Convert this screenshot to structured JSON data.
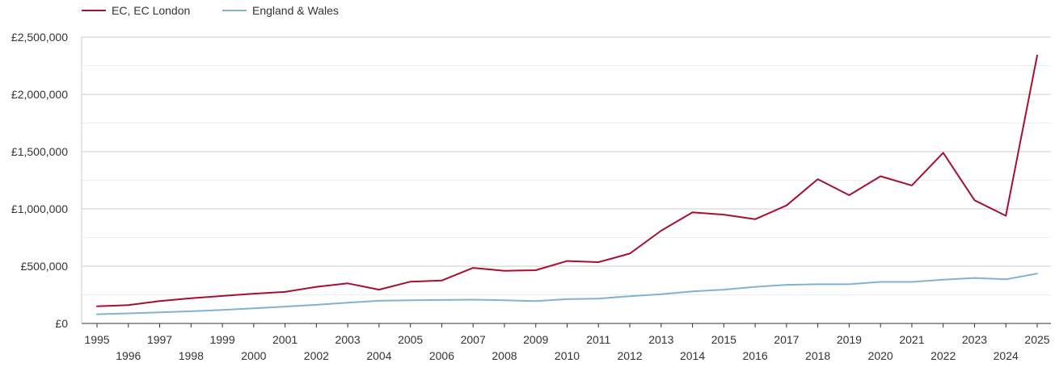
{
  "chart_data": {
    "type": "line",
    "title": "",
    "xlabel": "",
    "ylabel": "",
    "x": [
      1995,
      1996,
      1997,
      1998,
      1999,
      2000,
      2001,
      2002,
      2003,
      2004,
      2005,
      2006,
      2007,
      2008,
      2009,
      2010,
      2011,
      2012,
      2013,
      2014,
      2015,
      2016,
      2017,
      2018,
      2019,
      2020,
      2021,
      2022,
      2023,
      2024,
      2025
    ],
    "ylim": [
      0,
      2500000
    ],
    "yticks": [
      0,
      500000,
      1000000,
      1500000,
      2000000,
      2500000
    ],
    "ytick_labels": [
      "£0",
      "£500,000",
      "£1,000,000",
      "£1,500,000",
      "£2,000,000",
      "£2,500,000"
    ],
    "xtick_labels": [
      "1995",
      "1996",
      "1997",
      "1998",
      "1999",
      "2000",
      "2001",
      "2002",
      "2003",
      "2004",
      "2005",
      "2006",
      "2007",
      "2008",
      "2009",
      "2010",
      "2011",
      "2012",
      "2013",
      "2014",
      "2015",
      "2016",
      "2017",
      "2018",
      "2019",
      "2020",
      "2021",
      "2022",
      "2023",
      "2024",
      "2025"
    ],
    "grid": true,
    "legend_position": "top-left",
    "series": [
      {
        "name": "EC, EC London",
        "color": "#a50f32",
        "values": [
          150000,
          160000,
          195000,
          220000,
          240000,
          260000,
          275000,
          320000,
          350000,
          295000,
          365000,
          375000,
          485000,
          460000,
          465000,
          545000,
          535000,
          610000,
          810000,
          970000,
          950000,
          910000,
          1030000,
          1260000,
          1120000,
          1285000,
          1205000,
          1490000,
          1075000,
          940000,
          2340000
        ]
      },
      {
        "name": "England & Wales",
        "color": "#7fb2d3",
        "values": [
          80000,
          88000,
          97000,
          106000,
          118000,
          132000,
          147000,
          163000,
          182000,
          198000,
          203000,
          205000,
          208000,
          202000,
          195000,
          212000,
          217000,
          238000,
          255000,
          280000,
          295000,
          320000,
          337000,
          342000,
          342000,
          363000,
          363000,
          382000,
          397000,
          385000,
          435000
        ]
      }
    ]
  }
}
